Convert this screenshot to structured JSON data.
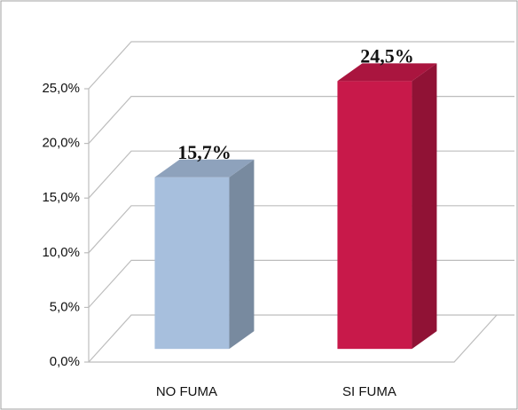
{
  "chart_data": {
    "type": "bar3d",
    "categories": [
      "NO FUMA",
      "SI FUMA"
    ],
    "values": [
      15.7,
      24.5
    ],
    "value_labels": [
      "15,7%",
      "24,5%"
    ],
    "colors": [
      "#a7bfdd",
      "#c8194a"
    ],
    "ylim": [
      0,
      25
    ],
    "yticks": [
      {
        "value": 0,
        "label": "0,0%"
      },
      {
        "value": 5,
        "label": "5,0%"
      },
      {
        "value": 10,
        "label": "10,0%"
      },
      {
        "value": 15,
        "label": "15,0%"
      },
      {
        "value": 20,
        "label": "20,0%"
      },
      {
        "value": 25,
        "label": "25,0%"
      }
    ],
    "grid": true
  }
}
